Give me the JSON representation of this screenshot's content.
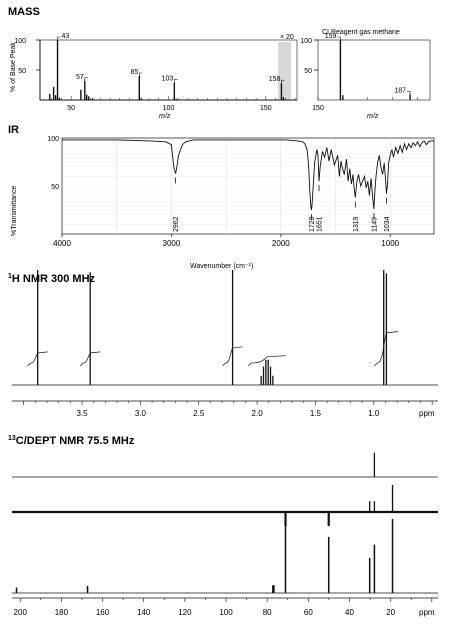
{
  "sections": {
    "mass": "MASS",
    "ir": "IR",
    "hnmr_prefix": "1",
    "hnmr": "H NMR 300 MHz",
    "cnmr_prefix": "13",
    "cnmr": "C/DEPT NMR 75.5 MHz"
  },
  "chart_data": [
    {
      "name": "EI mass spectrum",
      "type": "bar",
      "ylabel": "% of Base Peak",
      "xlabel": "m/z",
      "xlim": [
        34,
        166
      ],
      "ylim": [
        0,
        100
      ],
      "zoom_label": "× 20",
      "xticks": [
        50,
        100,
        150
      ],
      "yticks": [
        50,
        100
      ],
      "peaks": [
        {
          "mz": 39,
          "rel": 10
        },
        {
          "mz": 41,
          "rel": 22
        },
        {
          "mz": 42,
          "rel": 8
        },
        {
          "mz": 43,
          "rel": 100,
          "label": "43"
        },
        {
          "mz": 44,
          "rel": 4
        },
        {
          "mz": 55,
          "rel": 17
        },
        {
          "mz": 57,
          "rel": 32,
          "label": "57"
        },
        {
          "mz": 58,
          "rel": 9
        },
        {
          "mz": 59,
          "rel": 6
        },
        {
          "mz": 61,
          "rel": 3
        },
        {
          "mz": 85,
          "rel": 40,
          "label": "85"
        },
        {
          "mz": 86,
          "rel": 3
        },
        {
          "mz": 103,
          "rel": 29,
          "label": "103"
        },
        {
          "mz": 104,
          "rel": 2
        },
        {
          "mz": 158,
          "rel": 28,
          "label": "158"
        },
        {
          "mz": 159,
          "rel": 5
        }
      ]
    },
    {
      "name": "CI mass spectrum",
      "type": "bar",
      "title": "CI Reagent gas methane",
      "xlabel": "m/z",
      "xlim": [
        150,
        195
      ],
      "ylim": [
        0,
        100
      ],
      "xticks": [
        150
      ],
      "yticks": [
        50,
        100
      ],
      "peaks": [
        {
          "mz": 159,
          "rel": 100,
          "label": "159"
        },
        {
          "mz": 160,
          "rel": 8
        },
        {
          "mz": 187,
          "rel": 9,
          "label": "187"
        }
      ]
    },
    {
      "name": "IR spectrum",
      "type": "line",
      "xlabel": "Wavenumber (cm⁻¹)",
      "ylabel": "%Transmittance",
      "xlim": [
        4000,
        600
      ],
      "ylim": [
        0,
        100
      ],
      "xticks": [
        4000,
        3000,
        2000,
        1000
      ],
      "yticks": [
        50,
        100
      ],
      "bands": [
        "2962",
        "1720",
        "1651",
        "1319",
        "1149",
        "1034"
      ],
      "x": [
        4000,
        3500,
        3200,
        3050,
        3000,
        2990,
        2975,
        2962,
        2950,
        2935,
        2900,
        2870,
        2800,
        2500,
        2200,
        1950,
        1850,
        1800,
        1780,
        1760,
        1745,
        1735,
        1725,
        1720,
        1715,
        1705,
        1690,
        1670,
        1660,
        1651,
        1640,
        1620,
        1600,
        1580,
        1560,
        1540,
        1510,
        1480,
        1465,
        1450,
        1440,
        1420,
        1400,
        1385,
        1370,
        1355,
        1340,
        1330,
        1319,
        1305,
        1290,
        1270,
        1250,
        1235,
        1220,
        1205,
        1190,
        1175,
        1160,
        1149,
        1140,
        1130,
        1115,
        1100,
        1085,
        1070,
        1055,
        1045,
        1034,
        1025,
        1015,
        1000,
        985,
        970,
        950,
        930,
        910,
        890,
        870,
        850,
        830,
        810,
        790,
        770,
        750,
        730,
        710,
        690,
        670,
        650,
        630,
        600
      ],
      "y": [
        98,
        98,
        97,
        96,
        93,
        82,
        68,
        63,
        70,
        82,
        93,
        96,
        98,
        98,
        98,
        98,
        97,
        96,
        94,
        88,
        70,
        45,
        28,
        25,
        30,
        48,
        75,
        88,
        82,
        55,
        70,
        86,
        80,
        90,
        76,
        88,
        72,
        82,
        60,
        76,
        70,
        62,
        78,
        55,
        68,
        52,
        62,
        48,
        38,
        55,
        62,
        50,
        56,
        60,
        48,
        55,
        40,
        58,
        38,
        26,
        45,
        60,
        75,
        82,
        70,
        62,
        74,
        60,
        42,
        52,
        74,
        82,
        88,
        80,
        90,
        84,
        92,
        85,
        94,
        88,
        94,
        90,
        95,
        92,
        96,
        91,
        95,
        97,
        93,
        96,
        97,
        97
      ]
    },
    {
      "name": "1H NMR",
      "type": "line",
      "xlabel": "ppm",
      "xlim": [
        4.1,
        0.45
      ],
      "xticks": [
        "3.5",
        "3.0",
        "2.5",
        "2.0",
        "1.5",
        "1.0"
      ],
      "xtick_values": [
        3.5,
        3.0,
        2.5,
        2.0,
        1.5,
        1.0
      ],
      "peaks": [
        {
          "ppm": 3.88,
          "h": 1.0
        },
        {
          "ppm": 3.43,
          "h": 0.98
        },
        {
          "ppm": 2.21,
          "h": 1.0
        },
        {
          "ppm": 1.965,
          "h": 0.08
        },
        {
          "ppm": 1.945,
          "h": 0.16
        },
        {
          "ppm": 1.925,
          "h": 0.22
        },
        {
          "ppm": 1.905,
          "h": 0.22
        },
        {
          "ppm": 1.885,
          "h": 0.16
        },
        {
          "ppm": 1.865,
          "h": 0.08
        },
        {
          "ppm": 0.915,
          "h": 1.0
        },
        {
          "ppm": 0.892,
          "h": 0.97
        }
      ],
      "integrals": [
        {
          "from": 3.94,
          "to": 3.82,
          "rise": 0.16
        },
        {
          "from": 3.49,
          "to": 3.37,
          "rise": 0.16
        },
        {
          "from": 2.27,
          "to": 2.15,
          "rise": 0.24
        },
        {
          "from": 2.05,
          "to": 1.78,
          "rise": 0.1
        },
        {
          "from": 0.97,
          "to": 0.82,
          "rise": 0.48
        }
      ]
    },
    {
      "name": "13C NMR with DEPT",
      "type": "bar",
      "xlabel": "ppm",
      "xlim": [
        204,
        -3
      ],
      "xticks": [
        200,
        180,
        160,
        140,
        120,
        100,
        80,
        60,
        40,
        20
      ],
      "dept90_peaks": [
        {
          "ppm": 27.9,
          "h": 0.9
        }
      ],
      "dept135_peaks": [
        {
          "ppm": 71.1,
          "h": 1.0,
          "sign": "negative"
        },
        {
          "ppm": 50.1,
          "h": 1.0,
          "sign": "negative"
        },
        {
          "ppm": 30.2,
          "h": 0.4
        },
        {
          "ppm": 27.9,
          "h": 0.4
        },
        {
          "ppm": 19.1,
          "h": 1.0
        }
      ],
      "peaks": [
        {
          "ppm": 201.8,
          "h": 0.07
        },
        {
          "ppm": 167.3,
          "h": 0.09
        },
        {
          "ppm": 77.0,
          "h": 0.1
        },
        {
          "ppm": 71.1,
          "h": 0.86
        },
        {
          "ppm": 50.1,
          "h": 0.72
        },
        {
          "ppm": 30.2,
          "h": 0.45
        },
        {
          "ppm": 27.9,
          "h": 0.62
        },
        {
          "ppm": 19.1,
          "h": 0.95
        }
      ]
    }
  ]
}
